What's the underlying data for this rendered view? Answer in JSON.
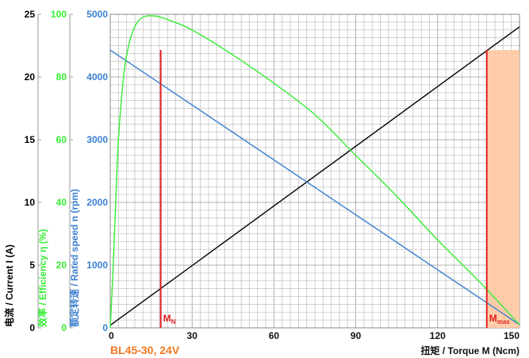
{
  "chart_data": {
    "type": "line",
    "model_label": "BL45-30, 24V",
    "x_axis": {
      "label": "扭矩 / Torque M (Ncm)",
      "range": [
        0,
        150
      ],
      "ticks": [
        "0",
        "30",
        "60",
        "90",
        "120",
        "150"
      ]
    },
    "y_axes": [
      {
        "key": "current",
        "label": "电流 / Current I (A)",
        "color": "#000000",
        "range": [
          0,
          25
        ],
        "ticks": [
          "0",
          "5",
          "10",
          "15",
          "20",
          "25"
        ]
      },
      {
        "key": "efficiency",
        "label": "效率 / Efficiency η (%)",
        "color": "#33ee33",
        "range": [
          0,
          100
        ],
        "ticks": [
          "0",
          "20",
          "40",
          "60",
          "80",
          "100"
        ]
      },
      {
        "key": "speed",
        "label": "额定转速 / Rated speed n (rpm)",
        "color": "#3a7fd0",
        "range": [
          0,
          5000
        ],
        "ticks": [
          "0",
          "1000",
          "2000",
          "3000",
          "4000",
          "5000"
        ]
      }
    ],
    "series": [
      {
        "name": "Current",
        "axis": "current",
        "color": "#000000",
        "x": [
          0,
          150
        ],
        "y": [
          0.2,
          24.0
        ]
      },
      {
        "name": "Speed",
        "axis": "speed",
        "color": "#3a7fd0",
        "x": [
          0,
          150
        ],
        "y": [
          4430,
          50
        ]
      },
      {
        "name": "Efficiency",
        "axis": "efficiency",
        "color": "#33ee33",
        "x": [
          0,
          1,
          2,
          3,
          5,
          7,
          9,
          11,
          13,
          15,
          18,
          22,
          30,
          45,
          60,
          75,
          90,
          105,
          120,
          135,
          150
        ],
        "y": [
          0,
          18,
          40,
          60,
          81,
          91,
          96,
          98.5,
          99.4,
          99.5,
          99.2,
          98,
          95,
          87,
          78,
          68,
          55,
          42,
          28,
          15,
          1
        ]
      }
    ],
    "markers": [
      {
        "label": "M",
        "sub": "N",
        "x": 18.5,
        "color": "#e02020",
        "top": 4430
      },
      {
        "label": "M",
        "sub": "max",
        "x": 138,
        "color": "#e02020",
        "top": 4430
      }
    ],
    "shaded_region": {
      "x_from": 138,
      "x_to": 150,
      "top": 4430,
      "color": "#ffc8a0"
    },
    "grid": true
  }
}
